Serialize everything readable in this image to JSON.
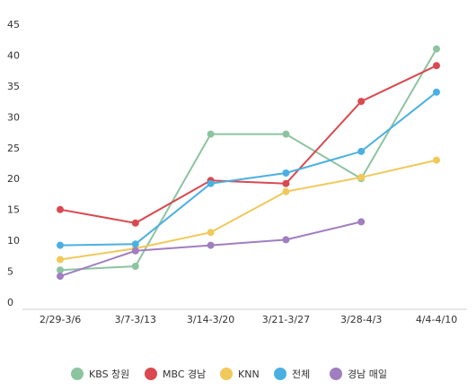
{
  "chart_data": {
    "type": "line",
    "categories": [
      "2/29-3/6",
      "3/7-3/13",
      "3/14-3/20",
      "3/21-3/27",
      "3/28-4/3",
      "4/4-4/10"
    ],
    "ylim": [
      0,
      45
    ],
    "yticks": [
      0,
      5,
      10,
      15,
      20,
      25,
      30,
      35,
      40,
      45
    ],
    "grid": false,
    "legend_position": "bottom",
    "series": [
      {
        "name": "KBS 창원",
        "color": "#8cc4a0",
        "values": [
          5.2,
          5.8,
          27.2,
          27.2,
          20.0,
          41.0
        ]
      },
      {
        "name": "MBC 경남",
        "color": "#d9494f",
        "values": [
          15.0,
          12.8,
          19.7,
          19.2,
          32.5,
          38.3
        ]
      },
      {
        "name": "KNN",
        "color": "#f0c95a",
        "values": [
          6.9,
          8.7,
          11.3,
          17.9,
          20.2,
          23.0
        ]
      },
      {
        "name": "전체",
        "color": "#4ab0e2",
        "values": [
          9.2,
          9.4,
          19.2,
          20.9,
          24.4,
          34.0
        ]
      },
      {
        "name": "경남 매일",
        "color": "#a07ec0",
        "values": [
          4.2,
          8.3,
          9.2,
          10.1,
          13.0,
          null
        ]
      }
    ]
  }
}
